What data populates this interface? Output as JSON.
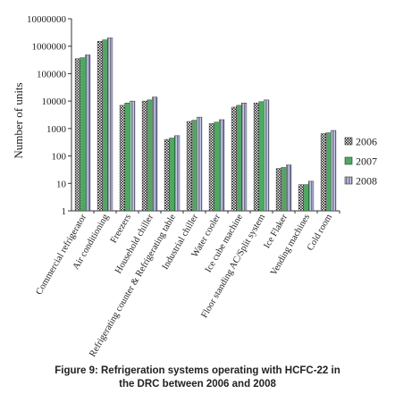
{
  "chart_data": {
    "type": "bar",
    "yscale": "log",
    "ylim": [
      1,
      10000000
    ],
    "ylabel": "Number of units",
    "xlabel": "",
    "yticks": [
      "1",
      "10",
      "100",
      "1000",
      "10000",
      "100000",
      "1000000",
      "10000000"
    ],
    "categories": [
      "Commercial refrigerator",
      "Air conditioning",
      "Freezers",
      "Household chiller",
      "Refrigerating counter & Refrigerating table",
      "Industrial chiller",
      "Water cooler",
      "Ice cube machine",
      "Floor standing AC/Split system",
      "Ice Flaker",
      "Vending machines",
      "Cold room"
    ],
    "series": [
      {
        "name": "2006",
        "pattern": "checker",
        "color": "#1a1a1a",
        "values": [
          350000,
          1500000,
          7000,
          10000,
          400,
          1800,
          1500,
          6000,
          8500,
          35,
          9,
          650
        ]
      },
      {
        "name": "2007",
        "pattern": "solid",
        "color": "#4caa5e",
        "values": [
          380000,
          1700000,
          8500,
          11000,
          450,
          2000,
          1700,
          7000,
          9500,
          38,
          9,
          700
        ]
      },
      {
        "name": "2008",
        "pattern": "stripe",
        "color": "#8a8fb5",
        "values": [
          480000,
          2000000,
          10000,
          14000,
          550,
          2600,
          2100,
          8500,
          11000,
          47,
          12,
          850
        ]
      }
    ],
    "grid": false,
    "legend": "right"
  },
  "caption": {
    "line1": "Figure 9: Refrigeration systems operating with HCFC-22 in",
    "line2": "the DRC between 2006 and 2008"
  }
}
